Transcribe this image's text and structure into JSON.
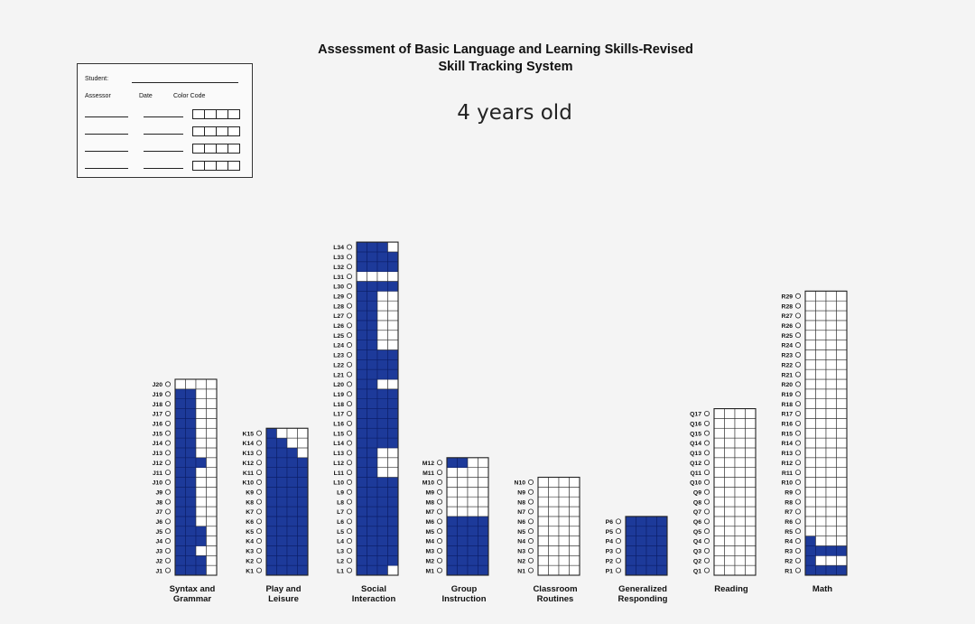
{
  "header": {
    "title_line1": "Assessment of Basic Language and Learning Skills-Revised",
    "title_line2": "Skill Tracking System",
    "age_label": "4 years old"
  },
  "info_box": {
    "student_label": "Student:",
    "assessor_label": "Assessor",
    "date_label": "Date",
    "color_code_label": "Color Code",
    "row_count": 4
  },
  "chart_data": {
    "type": "table",
    "fill_color": "#1d3a9a",
    "columns": [
      {
        "name": "Syntax and Grammar",
        "prefix": "J",
        "count": 20,
        "filled_cols_by_row": [
          3,
          3,
          2,
          3,
          3,
          2,
          2,
          2,
          2,
          2,
          2,
          3,
          2,
          2,
          2,
          2,
          2,
          2,
          2,
          0
        ]
      },
      {
        "name": "Play and Leisure",
        "prefix": "K",
        "count": 15,
        "filled_cols_by_row": [
          4,
          4,
          4,
          4,
          4,
          4,
          4,
          4,
          4,
          4,
          4,
          4,
          3,
          2,
          1
        ]
      },
      {
        "name": "Social Interaction",
        "prefix": "L",
        "count": 34,
        "filled_cols_by_row": [
          3,
          4,
          4,
          4,
          4,
          4,
          4,
          4,
          4,
          4,
          2,
          2,
          2,
          4,
          4,
          4,
          4,
          4,
          4,
          2,
          4,
          4,
          4,
          2,
          2,
          2,
          2,
          2,
          2,
          4,
          0,
          4,
          4,
          3
        ]
      },
      {
        "name": "Group Instruction",
        "prefix": "M",
        "count": 12,
        "filled_cols_by_row": [
          4,
          4,
          4,
          4,
          4,
          4,
          0,
          0,
          0,
          0,
          0,
          2
        ]
      },
      {
        "name": "Classroom Routines",
        "prefix": "N",
        "count": 10,
        "filled_cols_by_row": [
          0,
          0,
          0,
          0,
          0,
          0,
          0,
          0,
          0,
          0
        ]
      },
      {
        "name": "Generalized Responding",
        "prefix": "P",
        "count": 6,
        "filled_cols_by_row": [
          4,
          4,
          4,
          4,
          4,
          4
        ]
      },
      {
        "name": "Reading",
        "prefix": "Q",
        "count": 17,
        "filled_cols_by_row": [
          0,
          0,
          0,
          0,
          0,
          0,
          0,
          0,
          0,
          0,
          0,
          0,
          0,
          0,
          0,
          0,
          0
        ]
      },
      {
        "name": "Math",
        "prefix": "R",
        "count": 29,
        "filled_cols_by_row": [
          4,
          1,
          4,
          1,
          0,
          0,
          0,
          0,
          0,
          0,
          0,
          0,
          0,
          0,
          0,
          0,
          0,
          0,
          0,
          0,
          0,
          0,
          0,
          0,
          0,
          0,
          0,
          0,
          0
        ]
      }
    ]
  }
}
